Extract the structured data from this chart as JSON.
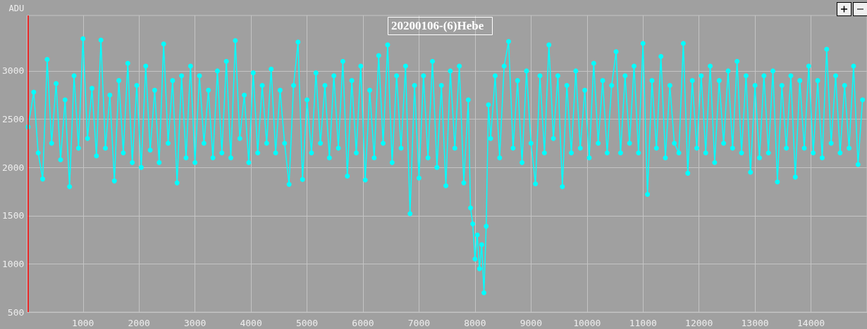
{
  "chart_data": {
    "type": "line",
    "title": "20200106-(6)Hebe",
    "ylabel": "ADU",
    "color": "#00ffff",
    "marker": "circle",
    "line_style": "solid",
    "grid": true,
    "xlim": [
      0,
      15000
    ],
    "ylim": [
      500,
      3575
    ],
    "xticks": [
      1000,
      2000,
      3000,
      4000,
      5000,
      6000,
      7000,
      8000,
      9000,
      10000,
      11000,
      12000,
      13000,
      14000
    ],
    "yticks": [
      500,
      1000,
      1500,
      2000,
      2500,
      3000
    ],
    "ref_lines": [
      {
        "axis": "x",
        "value": 20,
        "color": "#ff0000"
      }
    ],
    "x": [
      20,
      120,
      200,
      280,
      360,
      440,
      520,
      600,
      680,
      760,
      840,
      920,
      1000,
      1080,
      1160,
      1240,
      1320,
      1400,
      1480,
      1560,
      1640,
      1720,
      1800,
      1880,
      1960,
      2040,
      2120,
      2200,
      2280,
      2360,
      2440,
      2520,
      2600,
      2680,
      2760,
      2840,
      2920,
      3000,
      3080,
      3160,
      3240,
      3320,
      3400,
      3480,
      3560,
      3640,
      3720,
      3800,
      3880,
      3960,
      4040,
      4120,
      4200,
      4280,
      4360,
      4440,
      4520,
      4600,
      4680,
      4760,
      4840,
      4920,
      5000,
      5080,
      5160,
      5240,
      5320,
      5400,
      5480,
      5560,
      5640,
      5720,
      5800,
      5880,
      5960,
      6040,
      6120,
      6200,
      6280,
      6360,
      6440,
      6520,
      6600,
      6680,
      6760,
      6840,
      6920,
      7000,
      7080,
      7160,
      7240,
      7320,
      7400,
      7480,
      7560,
      7640,
      7720,
      7800,
      7880,
      7920,
      7960,
      8000,
      8040,
      8080,
      8120,
      8160,
      8200,
      8240,
      8280,
      8360,
      8440,
      8520,
      8600,
      8680,
      8760,
      8840,
      8920,
      9000,
      9080,
      9160,
      9240,
      9320,
      9400,
      9480,
      9560,
      9640,
      9720,
      9800,
      9880,
      9960,
      10040,
      10120,
      10200,
      10280,
      10360,
      10440,
      10520,
      10600,
      10680,
      10760,
      10840,
      10920,
      11000,
      11080,
      11160,
      11240,
      11320,
      11400,
      11480,
      11560,
      11640,
      11720,
      11800,
      11880,
      11960,
      12040,
      12120,
      12200,
      12280,
      12360,
      12440,
      12520,
      12600,
      12680,
      12760,
      12840,
      12920,
      13000,
      13080,
      13160,
      13240,
      13320,
      13400,
      13480,
      13560,
      13640,
      13720,
      13800,
      13880,
      13960,
      14040,
      14120,
      14200,
      14280,
      14360,
      14440,
      14520,
      14600,
      14680,
      14760,
      14840,
      14920
    ],
    "values": [
      2420,
      2780,
      2150,
      1880,
      3120,
      2250,
      2870,
      2080,
      2700,
      1800,
      2950,
      2200,
      3335,
      2300,
      2820,
      2120,
      3320,
      2200,
      2750,
      1860,
      2900,
      2150,
      3080,
      2050,
      2850,
      2000,
      3050,
      2180,
      2800,
      2050,
      3280,
      2250,
      2900,
      1840,
      2950,
      2100,
      3050,
      2050,
      2950,
      2250,
      2800,
      2100,
      3000,
      2150,
      3100,
      2100,
      3315,
      2300,
      2750,
      2050,
      2980,
      2150,
      2850,
      2250,
      3020,
      2150,
      2800,
      2250,
      1825,
      2850,
      3300,
      1875,
      2700,
      2150,
      2980,
      2250,
      2850,
      2100,
      2950,
      2200,
      3100,
      1910,
      2900,
      2150,
      3050,
      1870,
      2800,
      2100,
      3160,
      2250,
      3270,
      2050,
      2950,
      2200,
      3050,
      1520,
      2850,
      1890,
      2950,
      2100,
      3100,
      2000,
      2850,
      1810,
      3000,
      2200,
      3050,
      1840,
      2700,
      1580,
      1415,
      1050,
      1300,
      950,
      1200,
      700,
      1390,
      2650,
      2300,
      2950,
      2100,
      3050,
      3305,
      2200,
      2900,
      2050,
      3000,
      2250,
      1830,
      2950,
      2150,
      3270,
      2300,
      2950,
      1800,
      2850,
      2150,
      3000,
      2200,
      2800,
      2100,
      3080,
      2250,
      2900,
      2150,
      2850,
      3200,
      2150,
      2950,
      2250,
      3050,
      2150,
      3285,
      1720,
      2900,
      2200,
      3150,
      2100,
      2850,
      2250,
      2150,
      3285,
      1940,
      2900,
      2200,
      2950,
      2150,
      3050,
      2050,
      2900,
      2250,
      3000,
      2200,
      3100,
      2150,
      2950,
      1950,
      2850,
      2100,
      2950,
      2150,
      3000,
      1850,
      2850,
      2200,
      2950,
      1900,
      2900,
      2200,
      3050,
      2150,
      2900,
      2100,
      3225,
      2250,
      2950,
      2150,
      2850,
      2200,
      3050,
      2030,
      2700
    ]
  }
}
